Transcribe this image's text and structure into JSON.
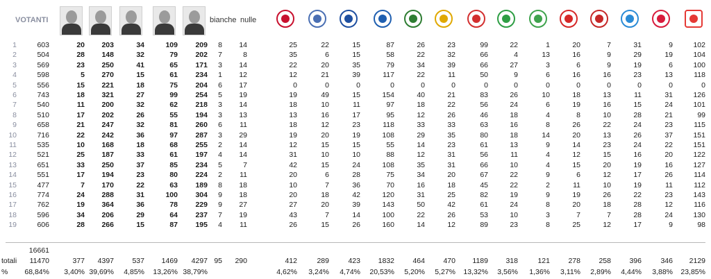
{
  "header": {
    "votanti": "VOTANTI",
    "bianche": "bianche",
    "nulle": "nulle",
    "candidates": [
      {
        "icon": "candidate-photo-1-icon"
      },
      {
        "icon": "candidate-photo-2-icon"
      },
      {
        "icon": "candidate-photo-3-icon"
      },
      {
        "icon": "candidate-photo-4-icon"
      },
      {
        "icon": "candidate-photo-5-icon"
      }
    ],
    "lists": [
      {
        "icon": "list-logo-1-icon",
        "color": "#c8102e"
      },
      {
        "icon": "list-logo-2-icon",
        "color": "#4a6fb3"
      },
      {
        "icon": "list-logo-3-icon",
        "color": "#1e4fa0"
      },
      {
        "icon": "list-logo-4-icon",
        "color": "#1f5fb0"
      },
      {
        "icon": "list-logo-5-icon",
        "color": "#2e7d32"
      },
      {
        "icon": "list-logo-6-icon",
        "color": "#e0a800"
      },
      {
        "icon": "list-logo-7-icon",
        "color": "#d32f2f"
      },
      {
        "icon": "list-logo-8-icon",
        "color": "#2e9e44"
      },
      {
        "icon": "list-logo-9-icon",
        "color": "#3fa34d"
      },
      {
        "icon": "list-logo-10-icon",
        "color": "#d62828"
      },
      {
        "icon": "list-logo-11-icon",
        "color": "#c62828"
      },
      {
        "icon": "list-logo-12-icon",
        "color": "#2a8bd6"
      },
      {
        "icon": "list-logo-13-icon",
        "color": "#d81b3c"
      },
      {
        "icon": "list-logo-14-icon",
        "color": "#e53935"
      }
    ]
  },
  "rows": [
    {
      "n": "1",
      "votanti": "603",
      "c": [
        "20",
        "203",
        "34",
        "109",
        "209"
      ],
      "bianche": "8",
      "nulle": "14",
      "l": [
        "25",
        "22",
        "15",
        "87",
        "26",
        "23",
        "99",
        "22",
        "1",
        "20",
        "7",
        "31",
        "9",
        "102"
      ]
    },
    {
      "n": "2",
      "votanti": "504",
      "c": [
        "28",
        "148",
        "32",
        "79",
        "202"
      ],
      "bianche": "7",
      "nulle": "8",
      "l": [
        "35",
        "6",
        "15",
        "58",
        "22",
        "32",
        "66",
        "4",
        "13",
        "16",
        "9",
        "29",
        "19",
        "104"
      ]
    },
    {
      "n": "3",
      "votanti": "569",
      "c": [
        "23",
        "250",
        "41",
        "65",
        "171"
      ],
      "bianche": "3",
      "nulle": "14",
      "l": [
        "22",
        "20",
        "35",
        "79",
        "34",
        "39",
        "66",
        "27",
        "3",
        "6",
        "9",
        "19",
        "6",
        "100"
      ]
    },
    {
      "n": "4",
      "votanti": "598",
      "c": [
        "5",
        "270",
        "15",
        "61",
        "234"
      ],
      "bianche": "1",
      "nulle": "12",
      "l": [
        "12",
        "21",
        "39",
        "117",
        "22",
        "11",
        "50",
        "9",
        "6",
        "16",
        "16",
        "23",
        "13",
        "118"
      ]
    },
    {
      "n": "5",
      "votanti": "556",
      "c": [
        "15",
        "221",
        "18",
        "75",
        "204"
      ],
      "bianche": "6",
      "nulle": "17",
      "l": [
        "0",
        "0",
        "0",
        "0",
        "0",
        "0",
        "0",
        "0",
        "0",
        "0",
        "0",
        "0",
        "0",
        "0"
      ]
    },
    {
      "n": "6",
      "votanti": "743",
      "c": [
        "18",
        "321",
        "27",
        "99",
        "254"
      ],
      "bianche": "5",
      "nulle": "19",
      "l": [
        "19",
        "49",
        "15",
        "154",
        "40",
        "21",
        "83",
        "26",
        "10",
        "18",
        "13",
        "11",
        "31",
        "126"
      ]
    },
    {
      "n": "7",
      "votanti": "540",
      "c": [
        "11",
        "200",
        "32",
        "62",
        "218"
      ],
      "bianche": "3",
      "nulle": "14",
      "l": [
        "18",
        "10",
        "11",
        "97",
        "18",
        "22",
        "56",
        "24",
        "6",
        "19",
        "16",
        "15",
        "24",
        "101"
      ]
    },
    {
      "n": "8",
      "votanti": "510",
      "c": [
        "17",
        "202",
        "26",
        "55",
        "194"
      ],
      "bianche": "3",
      "nulle": "13",
      "l": [
        "13",
        "16",
        "17",
        "95",
        "12",
        "26",
        "46",
        "18",
        "4",
        "8",
        "10",
        "28",
        "21",
        "99"
      ]
    },
    {
      "n": "9",
      "votanti": "658",
      "c": [
        "21",
        "247",
        "32",
        "81",
        "260"
      ],
      "bianche": "6",
      "nulle": "11",
      "l": [
        "18",
        "12",
        "23",
        "118",
        "33",
        "33",
        "63",
        "16",
        "8",
        "26",
        "22",
        "24",
        "23",
        "115"
      ]
    },
    {
      "n": "10",
      "votanti": "716",
      "c": [
        "22",
        "242",
        "36",
        "97",
        "287"
      ],
      "bianche": "3",
      "nulle": "29",
      "l": [
        "19",
        "20",
        "19",
        "108",
        "29",
        "35",
        "80",
        "18",
        "14",
        "20",
        "13",
        "26",
        "37",
        "151"
      ]
    },
    {
      "n": "11",
      "votanti": "535",
      "c": [
        "10",
        "168",
        "18",
        "68",
        "255"
      ],
      "bianche": "2",
      "nulle": "14",
      "l": [
        "12",
        "15",
        "15",
        "55",
        "14",
        "23",
        "61",
        "13",
        "9",
        "14",
        "23",
        "24",
        "22",
        "151"
      ]
    },
    {
      "n": "12",
      "votanti": "521",
      "c": [
        "25",
        "187",
        "33",
        "61",
        "197"
      ],
      "bianche": "4",
      "nulle": "14",
      "l": [
        "31",
        "10",
        "10",
        "88",
        "12",
        "31",
        "56",
        "11",
        "4",
        "12",
        "15",
        "16",
        "20",
        "122"
      ]
    },
    {
      "n": "13",
      "votanti": "651",
      "c": [
        "33",
        "250",
        "37",
        "85",
        "234"
      ],
      "bianche": "5",
      "nulle": "7",
      "l": [
        "42",
        "15",
        "24",
        "108",
        "35",
        "31",
        "66",
        "10",
        "4",
        "15",
        "20",
        "19",
        "16",
        "127"
      ]
    },
    {
      "n": "14",
      "votanti": "551",
      "c": [
        "17",
        "194",
        "23",
        "80",
        "224"
      ],
      "bianche": "2",
      "nulle": "11",
      "l": [
        "20",
        "6",
        "28",
        "75",
        "34",
        "20",
        "67",
        "22",
        "9",
        "6",
        "12",
        "17",
        "26",
        "114"
      ]
    },
    {
      "n": "15",
      "votanti": "477",
      "c": [
        "7",
        "170",
        "22",
        "63",
        "189"
      ],
      "bianche": "8",
      "nulle": "18",
      "l": [
        "10",
        "7",
        "36",
        "70",
        "16",
        "18",
        "45",
        "22",
        "2",
        "11",
        "10",
        "19",
        "11",
        "112"
      ]
    },
    {
      "n": "16",
      "votanti": "774",
      "c": [
        "24",
        "288",
        "31",
        "100",
        "304"
      ],
      "bianche": "9",
      "nulle": "18",
      "l": [
        "20",
        "18",
        "42",
        "120",
        "31",
        "25",
        "82",
        "19",
        "9",
        "19",
        "26",
        "22",
        "23",
        "143"
      ]
    },
    {
      "n": "17",
      "votanti": "762",
      "c": [
        "19",
        "364",
        "36",
        "78",
        "229"
      ],
      "bianche": "9",
      "nulle": "27",
      "l": [
        "27",
        "20",
        "39",
        "143",
        "50",
        "42",
        "61",
        "24",
        "8",
        "20",
        "18",
        "28",
        "12",
        "116"
      ]
    },
    {
      "n": "18",
      "votanti": "596",
      "c": [
        "34",
        "206",
        "29",
        "64",
        "237"
      ],
      "bianche": "7",
      "nulle": "19",
      "l": [
        "43",
        "7",
        "14",
        "100",
        "22",
        "26",
        "53",
        "10",
        "3",
        "7",
        "7",
        "28",
        "24",
        "130"
      ]
    },
    {
      "n": "19",
      "votanti": "606",
      "c": [
        "28",
        "266",
        "15",
        "87",
        "195"
      ],
      "bianche": "4",
      "nulle": "11",
      "l": [
        "26",
        "15",
        "26",
        "160",
        "14",
        "12",
        "89",
        "23",
        "8",
        "25",
        "12",
        "17",
        "9",
        "98"
      ]
    }
  ],
  "footer": {
    "elettori": "16661",
    "totali_label": "totali",
    "pct_label": "%",
    "totali": {
      "votanti": "11470",
      "c": [
        "377",
        "4397",
        "537",
        "1469",
        "4297"
      ],
      "bianche": "95",
      "nulle": "290",
      "l": [
        "412",
        "289",
        "423",
        "1832",
        "464",
        "470",
        "1189",
        "318",
        "121",
        "278",
        "258",
        "396",
        "346",
        "2129"
      ]
    },
    "pct": {
      "votanti": "68,84%",
      "c": [
        "3,40%",
        "39,69%",
        "4,85%",
        "13,26%",
        "38,79%"
      ],
      "l": [
        "4,62%",
        "3,24%",
        "4,74%",
        "20,53%",
        "5,20%",
        "5,27%",
        "13,32%",
        "3,56%",
        "1,36%",
        "3,11%",
        "2,89%",
        "4,44%",
        "3,88%",
        "23,85%"
      ]
    }
  }
}
